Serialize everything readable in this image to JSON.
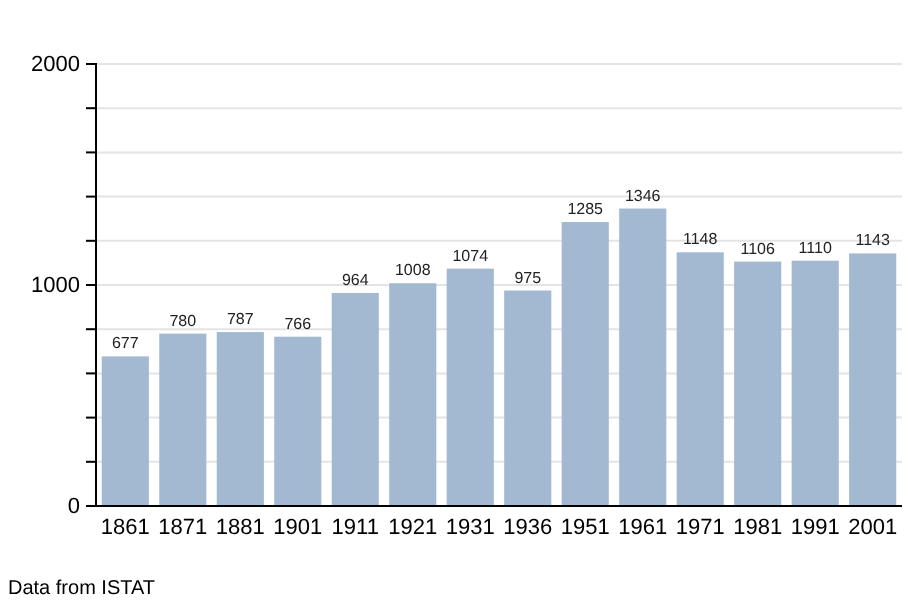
{
  "chart_data": {
    "type": "bar",
    "categories": [
      "1861",
      "1871",
      "1881",
      "1901",
      "1911",
      "1921",
      "1931",
      "1936",
      "1951",
      "1961",
      "1971",
      "1981",
      "1991",
      "2001"
    ],
    "values": [
      677,
      780,
      787,
      766,
      964,
      1008,
      1074,
      975,
      1285,
      1346,
      1148,
      1106,
      1110,
      1143
    ],
    "color": "#a3b9d2",
    "ylim": [
      0,
      2000
    ],
    "yticks": [
      0,
      {
        "value": 200,
        "label": null
      },
      {
        "value": 400,
        "label": null
      },
      {
        "value": 600,
        "label": null
      },
      {
        "value": 800,
        "label": null
      },
      1000,
      {
        "value": 1200,
        "label": null
      },
      {
        "value": 1400,
        "label": null
      },
      {
        "value": 1600,
        "label": null
      },
      {
        "value": 1800,
        "label": null
      },
      2000
    ],
    "grid": "y",
    "data_labels": true,
    "annotations": [
      "Data from ISTAT"
    ]
  }
}
